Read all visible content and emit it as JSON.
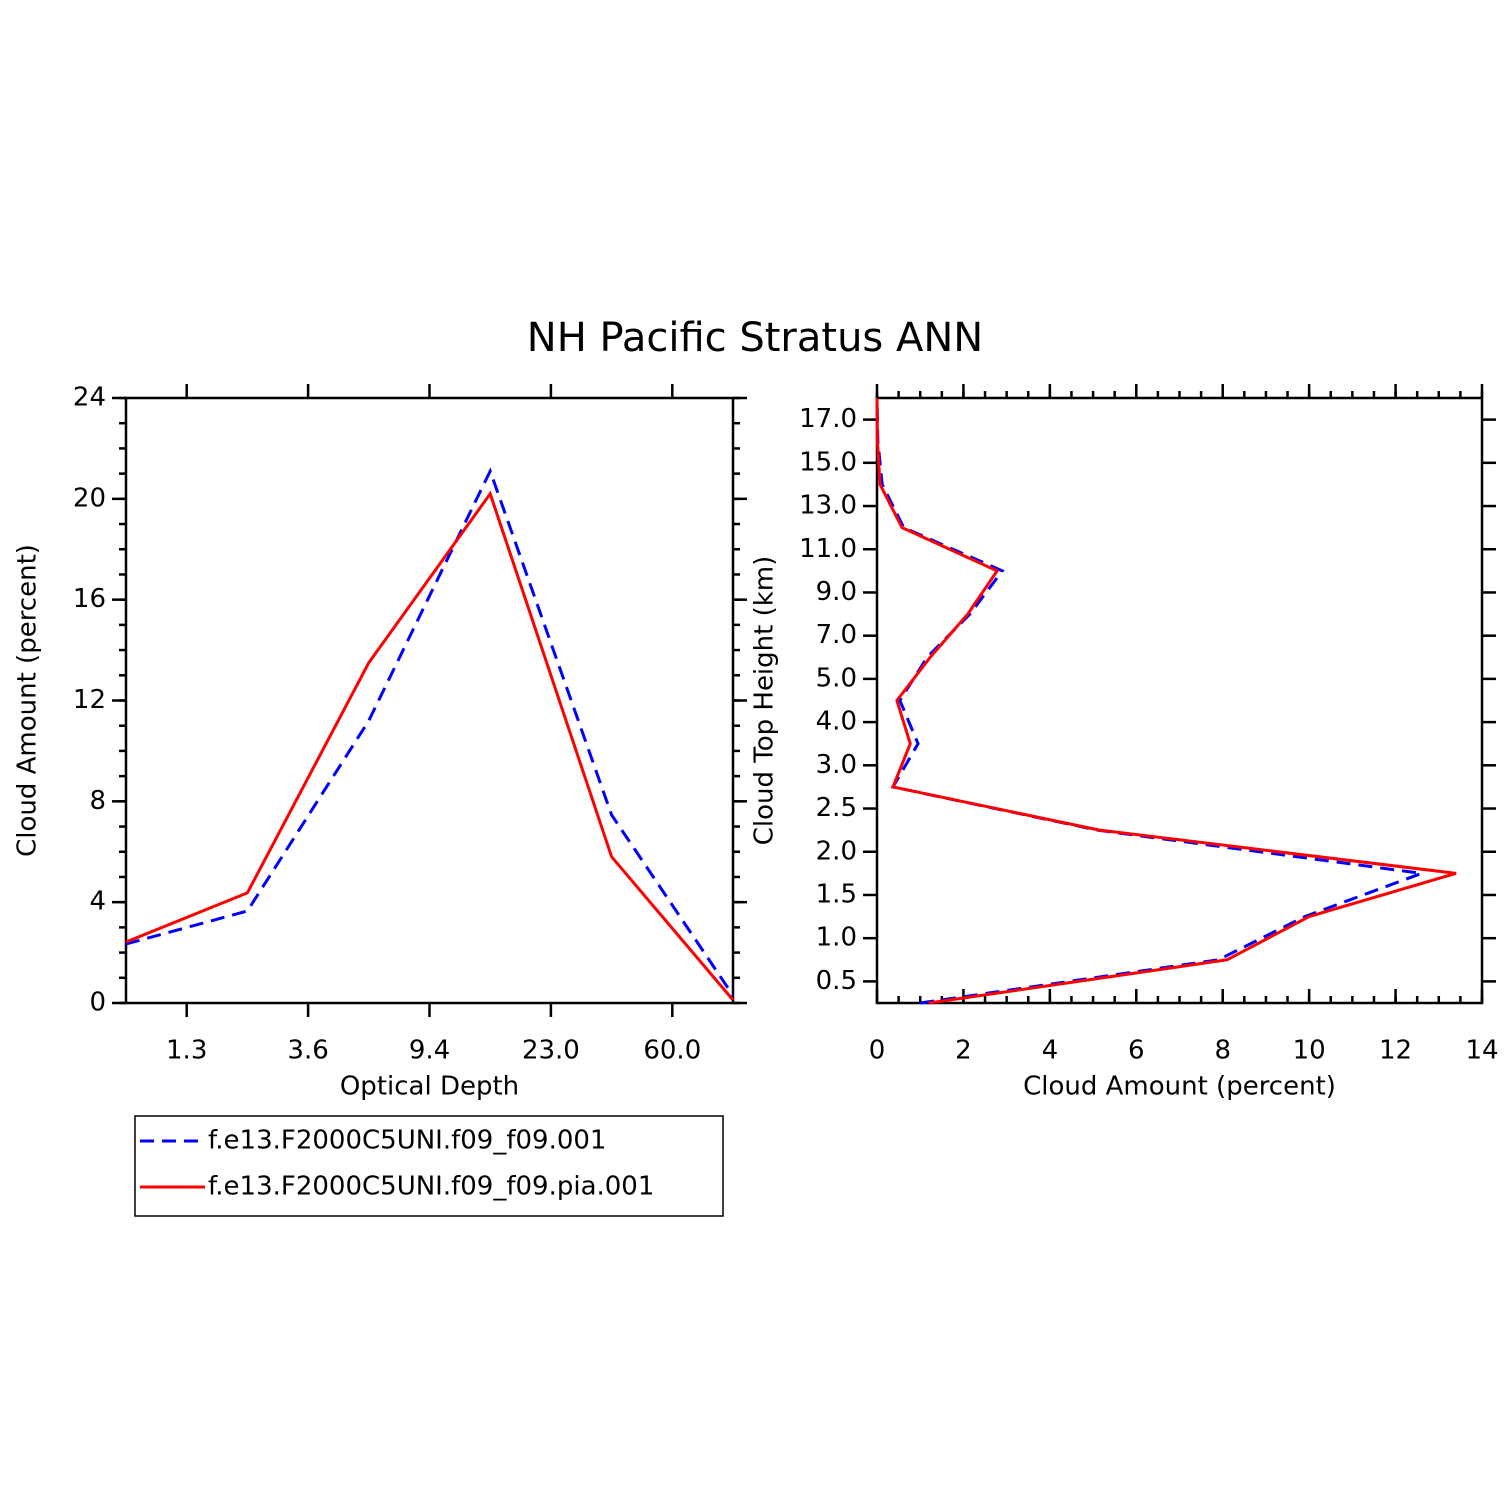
{
  "title": "NH Pacific Stratus ANN",
  "chart_data": [
    {
      "type": "line",
      "x_label": "Optical Depth",
      "y_label": "Cloud Amount (percent)",
      "x": [
        0,
        1,
        2,
        3,
        4,
        5
      ],
      "xlim": [
        0,
        5
      ],
      "xticks": [
        {
          "value": 0.5,
          "label": "1.3"
        },
        {
          "value": 1.5,
          "label": "3.6"
        },
        {
          "value": 2.5,
          "label": "9.4"
        },
        {
          "value": 3.5,
          "label": "23.0"
        },
        {
          "value": 4.5,
          "label": "60.0"
        }
      ],
      "ylim": [
        0,
        24
      ],
      "yticks": [
        0,
        4,
        8,
        12,
        16,
        20,
        24
      ],
      "yminor": 1,
      "series": [
        {
          "name": "f.e13.F2000C5UNI.f09_f09.001",
          "color": "#0000ff",
          "dash": true,
          "values": [
            2.34,
            3.65,
            11.2,
            21.1,
            7.46,
            0.3
          ]
        },
        {
          "name": "f.e13.F2000C5UNI.f09_f09.pia.001",
          "color": "#ff0000",
          "dash": false,
          "values": [
            2.42,
            4.37,
            13.5,
            20.2,
            5.8,
            0.12
          ]
        }
      ]
    },
    {
      "type": "line",
      "x_label": "Cloud Amount (percent)",
      "y_label": "Cloud Top Height (km)",
      "y": [
        0,
        1,
        2,
        3,
        4,
        5,
        6,
        7,
        8,
        9,
        10,
        11,
        12,
        13,
        14
      ],
      "ylim": [
        0,
        14
      ],
      "yticks": [
        {
          "value": 0.5,
          "label": "0.5"
        },
        {
          "value": 1.5,
          "label": "1.0"
        },
        {
          "value": 2.5,
          "label": "1.5"
        },
        {
          "value": 3.5,
          "label": "2.0"
        },
        {
          "value": 4.5,
          "label": "2.5"
        },
        {
          "value": 5.5,
          "label": "3.0"
        },
        {
          "value": 6.5,
          "label": "4.0"
        },
        {
          "value": 7.5,
          "label": "5.0"
        },
        {
          "value": 8.5,
          "label": "7.0"
        },
        {
          "value": 9.5,
          "label": "9.0"
        },
        {
          "value": 10.5,
          "label": "11.0"
        },
        {
          "value": 11.5,
          "label": "13.0"
        },
        {
          "value": 12.5,
          "label": "15.0"
        },
        {
          "value": 13.5,
          "label": "17.0"
        }
      ],
      "xlim": [
        0,
        14
      ],
      "xticks": [
        0,
        2,
        4,
        6,
        8,
        10,
        12,
        14
      ],
      "xminor": 0.5,
      "series": [
        {
          "color": "#0000ff",
          "dash": true,
          "values": [
            1.0,
            7.9,
            9.9,
            12.6,
            5.1,
            0.37,
            0.95,
            0.53,
            1.16,
            2.15,
            2.9,
            0.62,
            0.12,
            0.02,
            0
          ]
        },
        {
          "color": "#ff0000",
          "dash": false,
          "values": [
            1.2,
            8.1,
            10.0,
            13.4,
            5.15,
            0.37,
            0.77,
            0.46,
            1.23,
            2.1,
            2.78,
            0.58,
            0.07,
            0.01,
            0
          ]
        }
      ]
    }
  ]
}
